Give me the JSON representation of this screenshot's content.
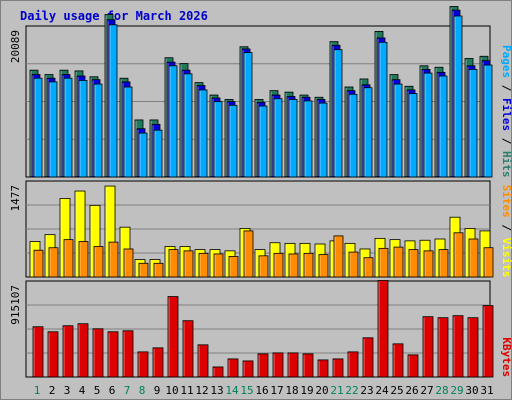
{
  "chart_data": {
    "title": "Daily usage for March 2026",
    "type": "bar",
    "categories": [
      "1",
      "2",
      "3",
      "4",
      "5",
      "6",
      "7",
      "8",
      "9",
      "10",
      "11",
      "12",
      "13",
      "14",
      "15",
      "16",
      "17",
      "18",
      "19",
      "20",
      "21",
      "22",
      "23",
      "24",
      "25",
      "26",
      "27",
      "28",
      "29",
      "30",
      "31"
    ],
    "weekend_days": [
      1,
      7,
      8,
      14,
      15,
      21,
      22,
      28,
      29
    ],
    "panels": [
      {
        "name": "hits-files-pages",
        "scale_label": "20089",
        "scale_value": 20089,
        "legend": [
          {
            "text": "Pages",
            "color": "#00AAFF"
          },
          {
            "text": " / ",
            "color": "#000000"
          },
          {
            "text": "Files",
            "color": "#0000DD"
          },
          {
            "text": " / ",
            "color": "#000000"
          },
          {
            "text": "Hits",
            "color": "#2E7D6E"
          }
        ],
        "series": [
          {
            "name": "Hits",
            "color": "#1F7A5C",
            "values": [
              14600,
              14000,
              14600,
              14500,
              13700,
              22200,
              13500,
              7800,
              7800,
              16300,
              15500,
              12900,
              11200,
              10600,
              17800,
              10600,
              11800,
              11600,
              11200,
              10900,
              18500,
              12300,
              13400,
              19900,
              14000,
              12400,
              15200,
              15000,
              23300,
              16200,
              16500
            ]
          },
          {
            "name": "Files",
            "color": "#0000DD",
            "values": [
              14000,
              13500,
              14000,
              13800,
              13300,
              21500,
              13000,
              6600,
              7200,
              15700,
              14600,
              12500,
              10800,
              10300,
              17500,
              10200,
              11200,
              11000,
              10900,
              10600,
              18000,
              11800,
              12600,
              19000,
              13300,
              11900,
              14700,
              14300,
              22800,
              15200,
              15900
            ]
          },
          {
            "name": "Pages",
            "color": "#00AAFF",
            "values": [
              13500,
              13000,
              13500,
              13200,
              12700,
              20800,
              12300,
              6000,
              6400,
              15200,
              14100,
              11900,
              10300,
              9800,
              17000,
              9700,
              10700,
              10600,
              10400,
              10100,
              17400,
              11300,
              12200,
              18400,
              12700,
              11400,
              14200,
              13800,
              22000,
              14700,
              15300
            ]
          }
        ]
      },
      {
        "name": "visits-sites",
        "scale_label": "1477",
        "scale_value": 1477,
        "legend": [
          {
            "text": "Sites",
            "color": "#FF8C00"
          },
          {
            "text": " / ",
            "color": "#000000"
          },
          {
            "text": "Visits",
            "color": "#FFFF00"
          }
        ],
        "series": [
          {
            "name": "Visits",
            "color": "#FFFF00",
            "values": [
              570,
              680,
              1260,
              1380,
              1150,
              1460,
              800,
              280,
              280,
              490,
              490,
              440,
              440,
              420,
              780,
              440,
              550,
              540,
              540,
              530,
              580,
              540,
              450,
              620,
              600,
              580,
              590,
              610,
              960,
              780,
              740
            ]
          },
          {
            "name": "Sites",
            "color": "#FF8C00",
            "values": [
              430,
              470,
              600,
              570,
              490,
              560,
              450,
              220,
              220,
              440,
              420,
              380,
              370,
              330,
              740,
              340,
              380,
              370,
              380,
              360,
              660,
              400,
              310,
              460,
              480,
              440,
              420,
              440,
              710,
              610,
              470
            ]
          }
        ]
      },
      {
        "name": "kbytes",
        "scale_label": "915107",
        "scale_value": 915107,
        "legend": [
          {
            "text": "KBytes",
            "color": "#DD0000"
          }
        ],
        "series": [
          {
            "name": "KBytes",
            "color": "#DD0000",
            "values": [
              500000,
              450000,
              510000,
              530000,
              480000,
              450000,
              460000,
              250000,
              290000,
              800000,
              560000,
              320000,
              100000,
              180000,
              160000,
              230000,
              240000,
              240000,
              230000,
              170000,
              180000,
              250000,
              390000,
              960000,
              330000,
              220000,
              600000,
              590000,
              610000,
              590000,
              710000
            ]
          }
        ]
      }
    ]
  }
}
